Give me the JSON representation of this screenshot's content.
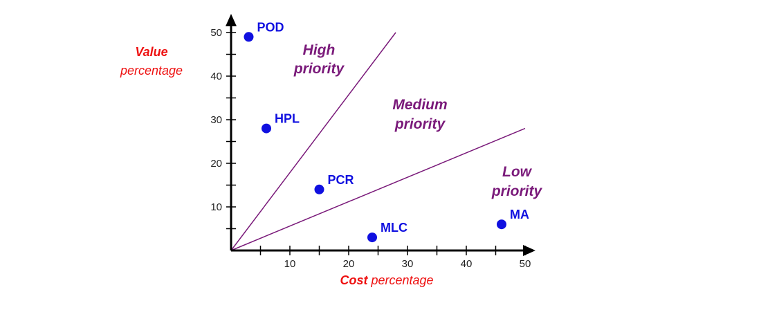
{
  "chart_data": {
    "type": "scatter",
    "title": "",
    "xlabel": {
      "bold": "Cost",
      "rest": "percentage"
    },
    "ylabel": {
      "bold": "Value",
      "rest": "percentage"
    },
    "xlim": [
      0,
      50
    ],
    "ylim": [
      0,
      50
    ],
    "x_ticks": [
      10,
      20,
      30,
      40,
      50
    ],
    "y_ticks": [
      10,
      20,
      30,
      40,
      50
    ],
    "grid": false,
    "points": [
      {
        "label": "POD",
        "x": 3,
        "y": 49
      },
      {
        "label": "HPL",
        "x": 6,
        "y": 28
      },
      {
        "label": "PCR",
        "x": 15,
        "y": 14
      },
      {
        "label": "MLC",
        "x": 24,
        "y": 3
      },
      {
        "label": "MA",
        "x": 46,
        "y": 6
      }
    ],
    "divider_lines": [
      {
        "from": [
          0,
          0
        ],
        "to": [
          28,
          50
        ]
      },
      {
        "from": [
          0,
          0
        ],
        "to": [
          50,
          28
        ]
      }
    ],
    "zones": [
      {
        "line1": "High",
        "line2": "priority"
      },
      {
        "line1": "Medium",
        "line2": "priority"
      },
      {
        "line1": "Low",
        "line2": "priority"
      }
    ],
    "colors": {
      "points": "#1010e0",
      "zone_text": "#7a1a7a",
      "axis_labels": "#ee1111",
      "divider": "#7a1a7a",
      "axis": "#000000"
    }
  }
}
